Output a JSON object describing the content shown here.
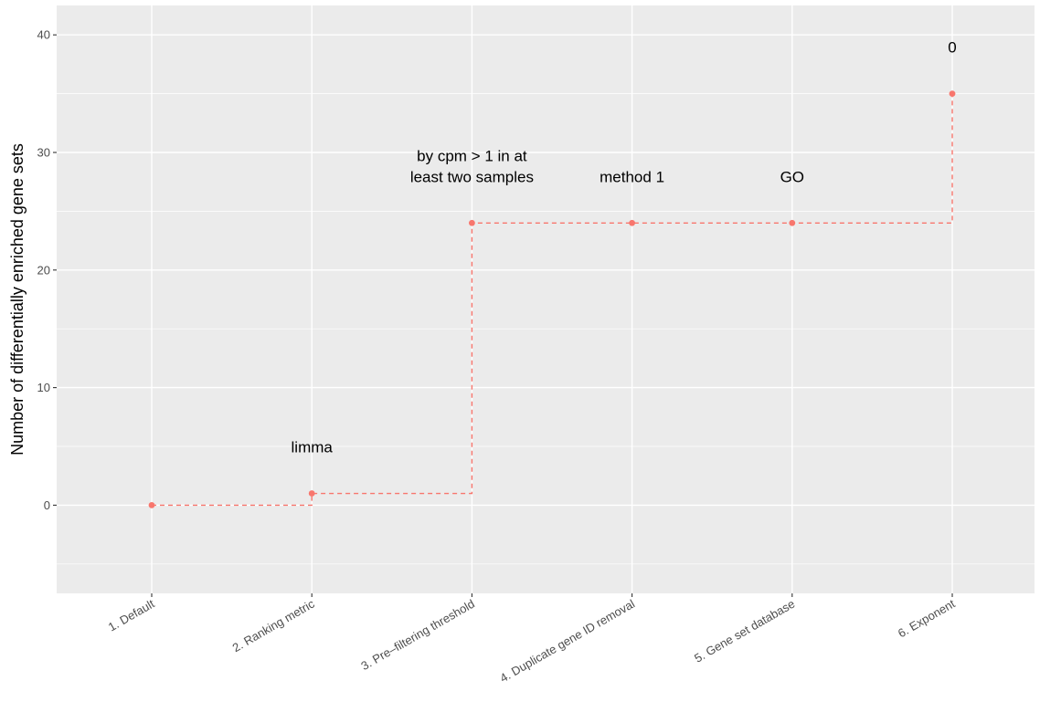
{
  "chart_data": {
    "type": "line",
    "step": "hv",
    "categories": [
      "1. Default",
      "2. Ranking metric",
      "3. Pre–filtering threshold",
      "4. Duplicate gene ID removal",
      "5. Gene set database",
      "6. Exponent"
    ],
    "values": [
      0,
      1,
      24,
      24,
      24,
      35
    ],
    "point_labels": [
      [],
      [
        "limma"
      ],
      [
        "by cpm > 1 in at",
        "least two samples"
      ],
      [
        "method 1"
      ],
      [
        "GO"
      ],
      [
        "0"
      ]
    ],
    "ylabel": "Number of differentially enriched gene sets",
    "xlabel": "",
    "ylim": [
      -7.5,
      42.5
    ],
    "yticks": [
      0,
      10,
      20,
      30,
      40
    ],
    "grid": true,
    "line_style": "dashed",
    "colors": {
      "series": "#F8766D",
      "panel": "#EBEBEB",
      "grid": "#FFFFFF"
    }
  }
}
